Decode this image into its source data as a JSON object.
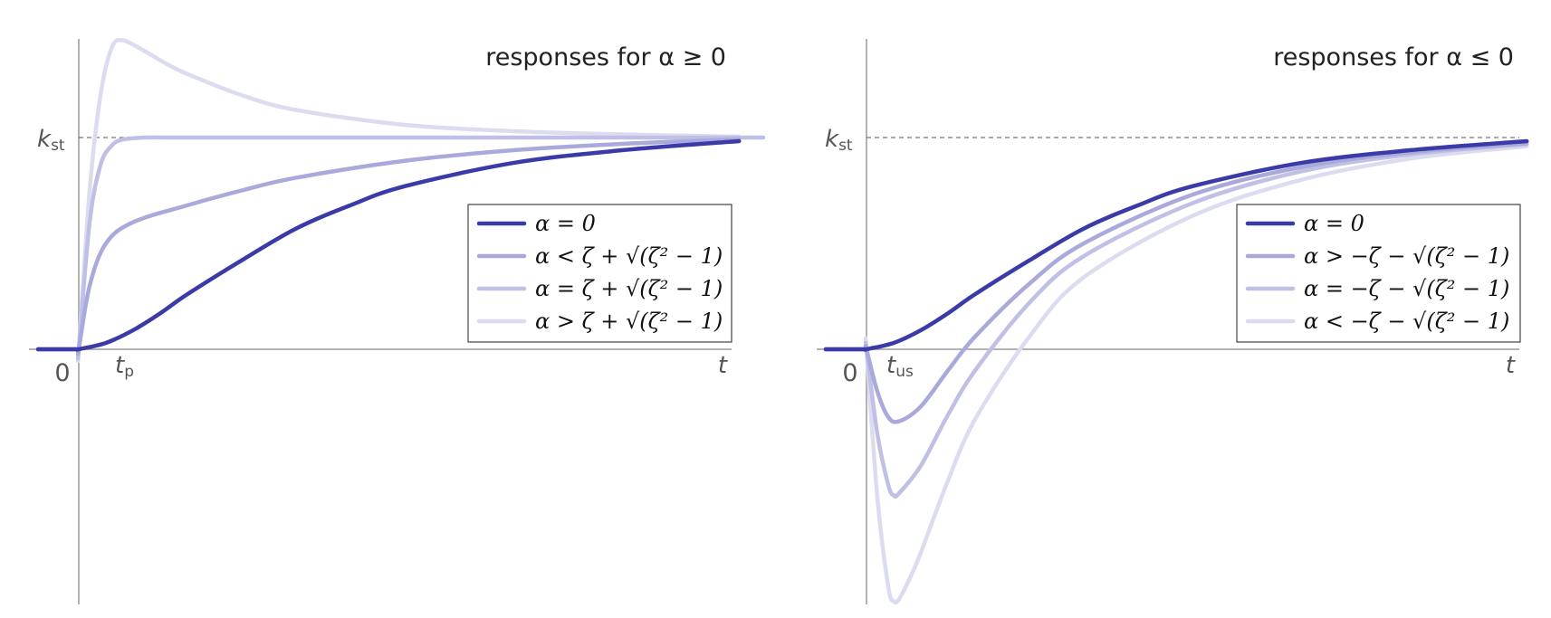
{
  "chart_data": [
    {
      "type": "line",
      "title": "responses for α ≥ 0",
      "xlabel": "t",
      "ylabel": "",
      "origin_label": "0",
      "reference_line": {
        "label": "k",
        "label_sub": "st",
        "y": 1
      },
      "tick_labels": [
        {
          "label": "t",
          "sub": "p",
          "x": 0.4
        }
      ],
      "xlim": [
        -0.4,
        6.0
      ],
      "ylim": [
        -1.2,
        1.45
      ],
      "grid": false,
      "legend_placement": "center-right",
      "series": [
        {
          "name": "α = 0",
          "color": "#3a3aa8",
          "x": [
            0,
            0.25,
            0.5,
            0.75,
            1.0,
            1.5,
            2.0,
            2.5,
            3.0,
            4.0,
            5.0,
            6.0
          ],
          "y": [
            0,
            0.03,
            0.09,
            0.17,
            0.26,
            0.42,
            0.57,
            0.68,
            0.77,
            0.88,
            0.94,
            0.98
          ]
        },
        {
          "name": "α < ζ + √(ζ² − 1)",
          "color": "#a9a9dc",
          "x": [
            0,
            0.1,
            0.25,
            0.5,
            1.0,
            1.5,
            2.0,
            3.0,
            4.0,
            5.0,
            6.0
          ],
          "y": [
            0,
            0.3,
            0.5,
            0.6,
            0.68,
            0.75,
            0.81,
            0.89,
            0.94,
            0.97,
            0.99
          ]
        },
        {
          "name": "α = ζ + √(ζ² − 1)",
          "color": "#c0c0e6",
          "x": [
            0,
            0.1,
            0.2,
            0.3,
            0.4,
            0.6,
            0.8,
            1.0,
            2.0,
            6.0
          ],
          "y": [
            0,
            0.6,
            0.87,
            0.96,
            0.99,
            1.0,
            1.0,
            1.0,
            1.0,
            1.0
          ]
        },
        {
          "name": "α > ζ + √(ζ² − 1)",
          "color": "#dcdcf1",
          "x": [
            0,
            0.1,
            0.2,
            0.3,
            0.4,
            0.6,
            0.8,
            1.0,
            1.5,
            2.0,
            3.0,
            4.0,
            5.0,
            6.0
          ],
          "y": [
            0,
            0.75,
            1.2,
            1.42,
            1.46,
            1.41,
            1.35,
            1.3,
            1.2,
            1.13,
            1.06,
            1.03,
            1.015,
            1.005
          ]
        }
      ]
    },
    {
      "type": "line",
      "title": "responses for α ≤ 0",
      "xlabel": "t",
      "ylabel": "",
      "origin_label": "0",
      "reference_line": {
        "label": "k",
        "label_sub": "st",
        "y": 1
      },
      "tick_labels": [
        {
          "label": "t",
          "sub": "us",
          "x": 0.25
        }
      ],
      "xlim": [
        -0.4,
        6.0
      ],
      "ylim": [
        -1.2,
        1.45
      ],
      "grid": false,
      "legend_placement": "center-right",
      "series": [
        {
          "name": "α = 0",
          "color": "#3a3aa8",
          "x": [
            0,
            0.25,
            0.5,
            0.75,
            1.0,
            1.5,
            2.0,
            2.5,
            3.0,
            4.0,
            5.0,
            6.0
          ],
          "y": [
            0,
            0.03,
            0.09,
            0.17,
            0.26,
            0.42,
            0.57,
            0.68,
            0.77,
            0.88,
            0.94,
            0.98
          ]
        },
        {
          "name": "α > −ζ − √(ζ² − 1)",
          "color": "#a9a9dc",
          "x": [
            0,
            0.1,
            0.2,
            0.3,
            0.5,
            0.75,
            1.0,
            1.5,
            2.0,
            3.0,
            4.0,
            5.0,
            6.0
          ],
          "y": [
            0,
            -0.2,
            -0.32,
            -0.34,
            -0.27,
            -0.1,
            0.06,
            0.31,
            0.5,
            0.73,
            0.86,
            0.93,
            0.97
          ]
        },
        {
          "name": "α = −ζ − √(ζ² − 1)",
          "color": "#c0c0e6",
          "x": [
            0,
            0.1,
            0.2,
            0.25,
            0.3,
            0.5,
            0.75,
            1.0,
            1.5,
            2.0,
            3.0,
            4.0,
            5.0,
            6.0
          ],
          "y": [
            0,
            -0.4,
            -0.64,
            -0.69,
            -0.68,
            -0.55,
            -0.31,
            -0.1,
            0.22,
            0.44,
            0.69,
            0.84,
            0.92,
            0.965
          ]
        },
        {
          "name": "α < −ζ − √(ζ² − 1)",
          "color": "#dcdcf1",
          "x": [
            0,
            0.1,
            0.2,
            0.25,
            0.3,
            0.4,
            0.5,
            0.75,
            1.0,
            1.5,
            2.0,
            3.0,
            4.0,
            5.0,
            6.0
          ],
          "y": [
            0,
            -0.7,
            -1.12,
            -1.19,
            -1.18,
            -1.08,
            -0.96,
            -0.62,
            -0.33,
            0.06,
            0.34,
            0.63,
            0.8,
            0.9,
            0.955
          ]
        }
      ]
    }
  ]
}
